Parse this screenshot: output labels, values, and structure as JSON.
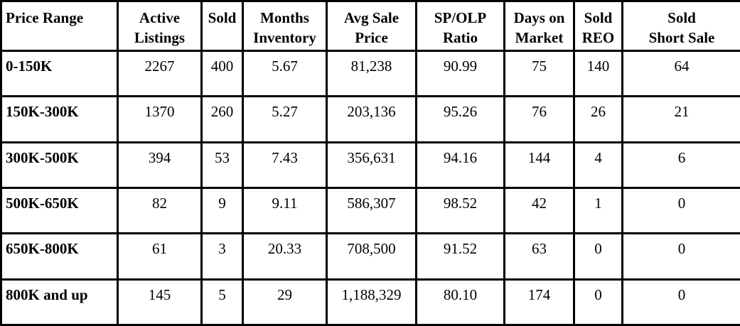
{
  "headers": [
    [
      "Price Range"
    ],
    [
      "Active",
      "Listings"
    ],
    [
      "Sold"
    ],
    [
      "Months",
      "Inventory"
    ],
    [
      "Avg Sale",
      "Price"
    ],
    [
      "SP/OLP",
      "Ratio"
    ],
    [
      "Days on",
      "Market"
    ],
    [
      "Sold",
      "REO"
    ],
    [
      "Sold",
      "Short Sale"
    ]
  ],
  "rows": [
    [
      "0-150K",
      "2267",
      "400",
      "5.67",
      "81,238",
      "90.99",
      "75",
      "140",
      "64"
    ],
    [
      "150K-300K",
      "1370",
      "260",
      "5.27",
      "203,136",
      "95.26",
      "76",
      "26",
      "21"
    ],
    [
      "300K-500K",
      "394",
      "53",
      "7.43",
      "356,631",
      "94.16",
      "144",
      "4",
      "6"
    ],
    [
      "500K-650K",
      "82",
      "9",
      "9.11",
      "586,307",
      "98.52",
      "42",
      "1",
      "0"
    ],
    [
      "650K-800K",
      "61",
      "3",
      "20.33",
      "708,500",
      "91.52",
      "63",
      "0",
      "0"
    ],
    [
      "800K and up",
      "145",
      "5",
      "29",
      "1,188,329",
      "80.10",
      "174",
      "0",
      "0"
    ]
  ]
}
